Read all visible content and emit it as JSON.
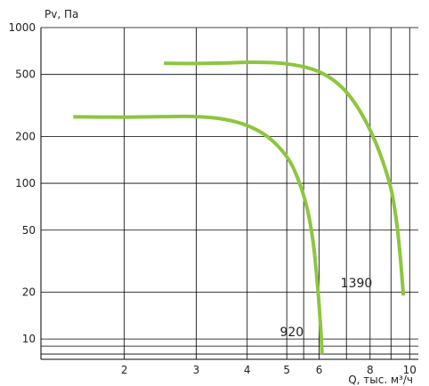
{
  "chart_data": {
    "type": "line",
    "xlabel": "Q, тыс. м³/ч",
    "ylabel": "Pv, Па",
    "x_scale": "log",
    "y_scale": "log",
    "xlim": [
      1.25,
      10.5
    ],
    "ylim": [
      7.4,
      1000
    ],
    "grid": true,
    "colors": {
      "curve": "#8cc63f",
      "grid": "#000000",
      "text": "#222222"
    },
    "x_ticks": [
      {
        "value": 2,
        "label": "2"
      },
      {
        "value": 3,
        "label": "3"
      },
      {
        "value": 4,
        "label": "4"
      },
      {
        "value": 5,
        "label": "5"
      },
      {
        "value": 6,
        "label": "6"
      },
      {
        "value": 8,
        "label": "8"
      },
      {
        "value": 10,
        "label": "10"
      }
    ],
    "x_grid": [
      2,
      3,
      4,
      5,
      5.5,
      6,
      7,
      8,
      9,
      10
    ],
    "y_ticks": [
      {
        "value": 1000,
        "label": "1000"
      },
      {
        "value": 500,
        "label": "500"
      },
      {
        "value": 200,
        "label": "200"
      },
      {
        "value": 100,
        "label": "100"
      },
      {
        "value": 50,
        "label": "50"
      },
      {
        "value": 20,
        "label": "20"
      },
      {
        "value": 10,
        "label": "10"
      }
    ],
    "y_grid": [
      1000,
      500,
      200,
      100,
      50,
      20,
      10,
      9,
      8
    ],
    "series": [
      {
        "name": "920",
        "label_at": [
          5.5,
          10.4
        ],
        "points": [
          [
            1.5,
            267
          ],
          [
            2.0,
            266
          ],
          [
            2.5,
            268
          ],
          [
            3.0,
            268
          ],
          [
            3.5,
            258
          ],
          [
            4.0,
            235
          ],
          [
            4.5,
            198
          ],
          [
            5.0,
            148
          ],
          [
            5.3,
            110
          ],
          [
            5.6,
            70
          ],
          [
            5.8,
            42
          ],
          [
            5.95,
            22
          ],
          [
            6.05,
            12
          ],
          [
            6.1,
            8
          ]
        ]
      },
      {
        "name": "1390",
        "label_at": [
          8.1,
          21.5
        ],
        "points": [
          [
            2.5,
            590
          ],
          [
            3.0,
            588
          ],
          [
            3.5,
            592
          ],
          [
            4.0,
            598
          ],
          [
            4.5,
            596
          ],
          [
            5.0,
            585
          ],
          [
            5.5,
            560
          ],
          [
            6.0,
            520
          ],
          [
            6.5,
            460
          ],
          [
            7.0,
            385
          ],
          [
            7.5,
            300
          ],
          [
            8.0,
            220
          ],
          [
            8.5,
            150
          ],
          [
            9.0,
            92
          ],
          [
            9.3,
            55
          ],
          [
            9.5,
            32
          ],
          [
            9.65,
            19
          ]
        ]
      }
    ]
  }
}
